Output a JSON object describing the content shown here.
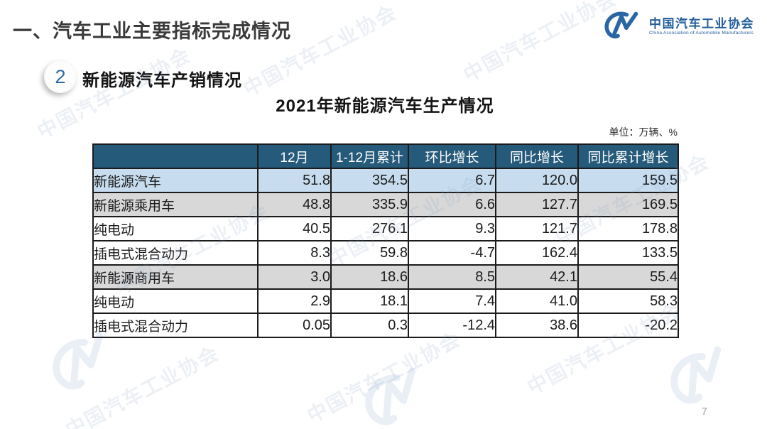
{
  "slide": {
    "title": "一、汽车工业主要指标完成情况",
    "section_number": "2",
    "section_title": "新能源汽车产销情况",
    "table_title": "2021年新能源汽车生产情况",
    "unit_note": "单位：万辆、%",
    "page_number": "7",
    "watermark_text": "中国汽车工业协会"
  },
  "logo": {
    "name_cn": "中国汽车工业协会",
    "name_en": "China Association of Automobile Manufacturers",
    "brand_color": "#245e9c"
  },
  "colors": {
    "header_bg": "#265a7a",
    "highlight_row_bg": "#c7ddef",
    "gray_row_bg": "#d8d8d8",
    "border": "#1b1b1b"
  },
  "table": {
    "columns": [
      "",
      "12月",
      "1-12月累计",
      "环比增长",
      "同比增长",
      "同比累计增长"
    ],
    "rows": [
      {
        "label": "新能源汽车",
        "indent": 0,
        "style": "blue",
        "values": [
          "51.8",
          "354.5",
          "6.7",
          "120.0",
          "159.5"
        ]
      },
      {
        "label": "新能源乘用车",
        "indent": 1,
        "style": "gray",
        "values": [
          "48.8",
          "335.9",
          "6.6",
          "127.7",
          "169.5"
        ]
      },
      {
        "label": "纯电动",
        "indent": 2,
        "style": "white",
        "values": [
          "40.5",
          "276.1",
          "9.3",
          "121.7",
          "178.8"
        ]
      },
      {
        "label": "插电式混合动力",
        "indent": 2,
        "style": "white",
        "values": [
          "8.3",
          "59.8",
          "-4.7",
          "162.4",
          "133.5"
        ]
      },
      {
        "label": "新能源商用车",
        "indent": 1,
        "style": "gray",
        "values": [
          "3.0",
          "18.6",
          "8.5",
          "42.1",
          "55.4"
        ]
      },
      {
        "label": "纯电动",
        "indent": 2,
        "style": "white",
        "values": [
          "2.9",
          "18.1",
          "7.4",
          "41.0",
          "58.3"
        ]
      },
      {
        "label": "插电式混合动力",
        "indent": 2,
        "style": "white",
        "values": [
          "0.05",
          "0.3",
          "-12.4",
          "38.6",
          "-20.2"
        ]
      }
    ]
  }
}
